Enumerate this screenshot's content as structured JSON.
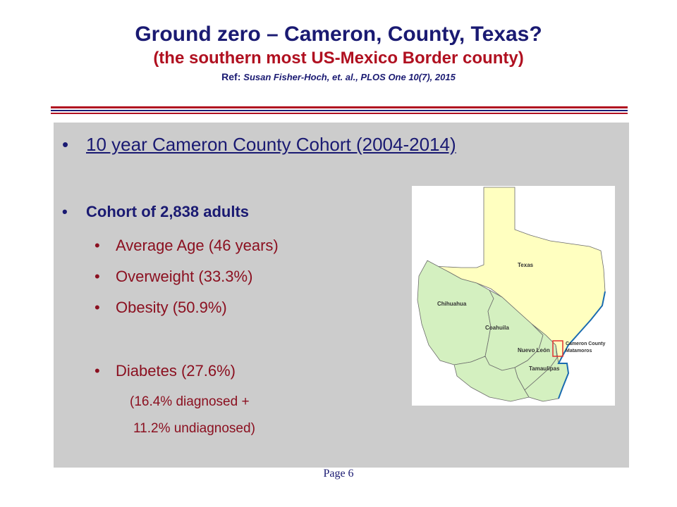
{
  "title": {
    "line1": "Ground zero – Cameron, County, Texas?",
    "line2": "(the southern most US-Mexico Border county)",
    "ref_label": "Ref:",
    "ref_text": "Susan Fisher-Hoch, et. al., PLOS One 10(7), 2015"
  },
  "content": {
    "heading": "10 year Cameron County Cohort (2004-2014)",
    "cohort": "Cohort of 2,838 adults",
    "items": [
      "Average Age (46 years)",
      "Overweight (33.3%)",
      "Obesity  (50.9%)",
      "Diabetes (27.6%)"
    ],
    "notes": [
      "(16.4% diagnosed +",
      "11.2% undiagnosed)"
    ]
  },
  "map": {
    "labels": {
      "texas": "Texas",
      "chihuahua": "Chihuahua",
      "coahuila": "Coahuila",
      "nuevo_leon": "Nuevo León",
      "tamaulipas": "Tamaulipas",
      "cameron_county": "Cameron County",
      "matamoros": "Matamoros"
    },
    "colors": {
      "texas": "#ffffc0",
      "mexico": "#d4f0c0",
      "border": "#6b6b6b",
      "coast": "#1a6bb0",
      "highlight": "#e03030"
    }
  },
  "footer": {
    "page": "Page 6"
  }
}
